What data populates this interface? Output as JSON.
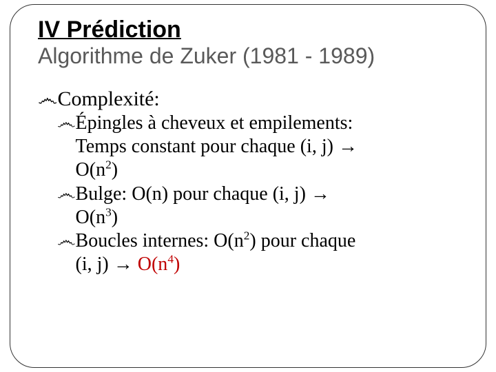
{
  "title": "IV Prédiction",
  "subtitle": "Algorithme de Zuker (1981 - 1989)",
  "bullet_glyph": "෴",
  "arrow": "→",
  "bullets": {
    "complexite_label": "Complexité:",
    "epingles": {
      "prefix": "Épingles à cheveux et empilements:",
      "cont1": "Temps constant pour chaque (i, j) ",
      "cont2": "O(n",
      "cont2_sup": "2",
      "cont2_end": ")"
    },
    "bulge": {
      "prefix": "Bulge:",
      "mid": "  O(n) pour chaque (i, j) ",
      "res": "O(n",
      "res_sup": "3",
      "res_end": ")"
    },
    "boucles": {
      "prefix": "Boucles internes:",
      "mid": "  O(n",
      "mid_sup": "2",
      "mid_end": ") pour chaque",
      "cont": "(i, j) ",
      "res": "O(n",
      "res_sup": "4",
      "res_end": ")"
    }
  },
  "colors": {
    "title_color": "#000000",
    "subtitle_color": "#595959",
    "body_color": "#000000",
    "highlight": "#c00000",
    "background": "#ffffff",
    "border": "#333333"
  },
  "fonts": {
    "title_family": "Arial",
    "body_family": "Times New Roman",
    "title_size_pt": 26,
    "subtitle_size_pt": 24,
    "body_size_pt": 22
  }
}
